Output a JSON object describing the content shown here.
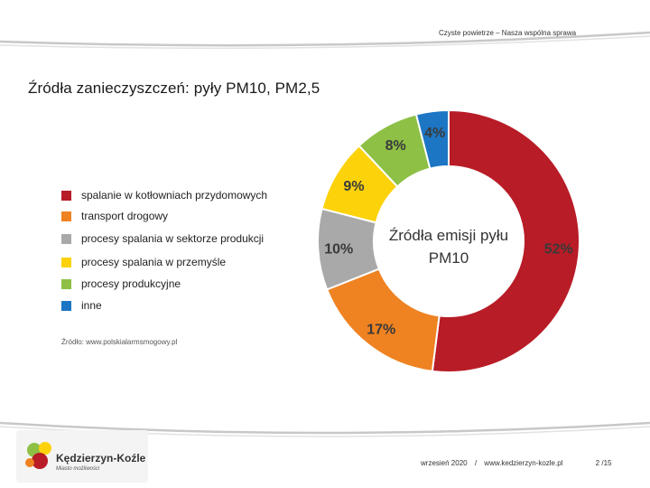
{
  "header": {
    "tagline": "Czyste powietrze – Nasza wspólna sprawa"
  },
  "slide": {
    "title": "Źródła zanieczyszczeń: pyły PM10, PM2,5"
  },
  "chart_data": {
    "type": "pie",
    "variant": "donut",
    "center_label_line1": "Źródła emisji pyłu",
    "center_label_line2": "PM10",
    "series": [
      {
        "name": "spalanie w kotłowniach przydomowych",
        "value": 52,
        "label": "52%",
        "color": "#b81c27"
      },
      {
        "name": "transport drogowy",
        "value": 17,
        "label": "17%",
        "color": "#ef8221"
      },
      {
        "name": "procesy spalania w sektorze produkcji",
        "value": 10,
        "label": "10%",
        "color": "#a9a9a9"
      },
      {
        "name": "procesy spalania w przemyśle",
        "value": 9,
        "label": "9%",
        "color": "#fcd20b"
      },
      {
        "name": "procesy produkcyjne",
        "value": 8,
        "label": "8%",
        "color": "#8dc045"
      },
      {
        "name": "inne",
        "value": 4,
        "label": "4%",
        "color": "#1c76c3"
      }
    ],
    "source": "Źródło: www.polskialarmsmogowy.pl"
  },
  "footer": {
    "date": "wrzesień 2020",
    "separator": "/",
    "website": "www.kedzierzyn-kozle.pl",
    "page": "2 /15"
  },
  "logo": {
    "name": "Kędzierzyn-Koźle",
    "subtitle": "Miasto możliwości"
  }
}
